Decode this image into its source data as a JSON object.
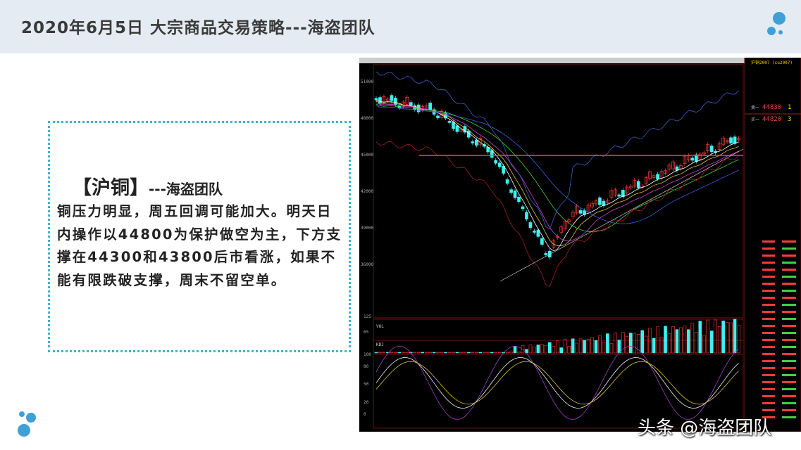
{
  "header": {
    "title": "2020年6月5日  大宗商品交易策略---海盗团队"
  },
  "card": {
    "heading": "【沪铜】",
    "heading_suffix": "---海盗团队",
    "body": "铜压力明显，周五回调可能加大。明天日内操作以44800为保护做空为主，下方支撑在44300和43800后市看涨，如果不能有限跌破支撑，周末不留空单。"
  },
  "chart_panel": {
    "contract": "沪铜2007 (cu2007)",
    "ask1": "44830",
    "ask1_vol": "1",
    "bid1": "44820",
    "bid1_vol": "3",
    "panel_labels": {
      "volume": "VOL",
      "kdj": "KDJ"
    },
    "price_ticks": [
      "51000",
      "48000",
      "45000",
      "42000",
      "39000",
      "36000"
    ],
    "volume_ticks": [
      "125",
      "65"
    ],
    "kdj_ticks": [
      "100",
      "80",
      "50",
      "20",
      "0"
    ],
    "colors": {
      "up": "#ff3b3b",
      "down": "#3ff0f0",
      "k": "#f0f0f0",
      "d": "#e0c040",
      "j": "#a040c0",
      "resistance": "#ff4040"
    }
  },
  "watermark": "头条 @海盗团队"
}
